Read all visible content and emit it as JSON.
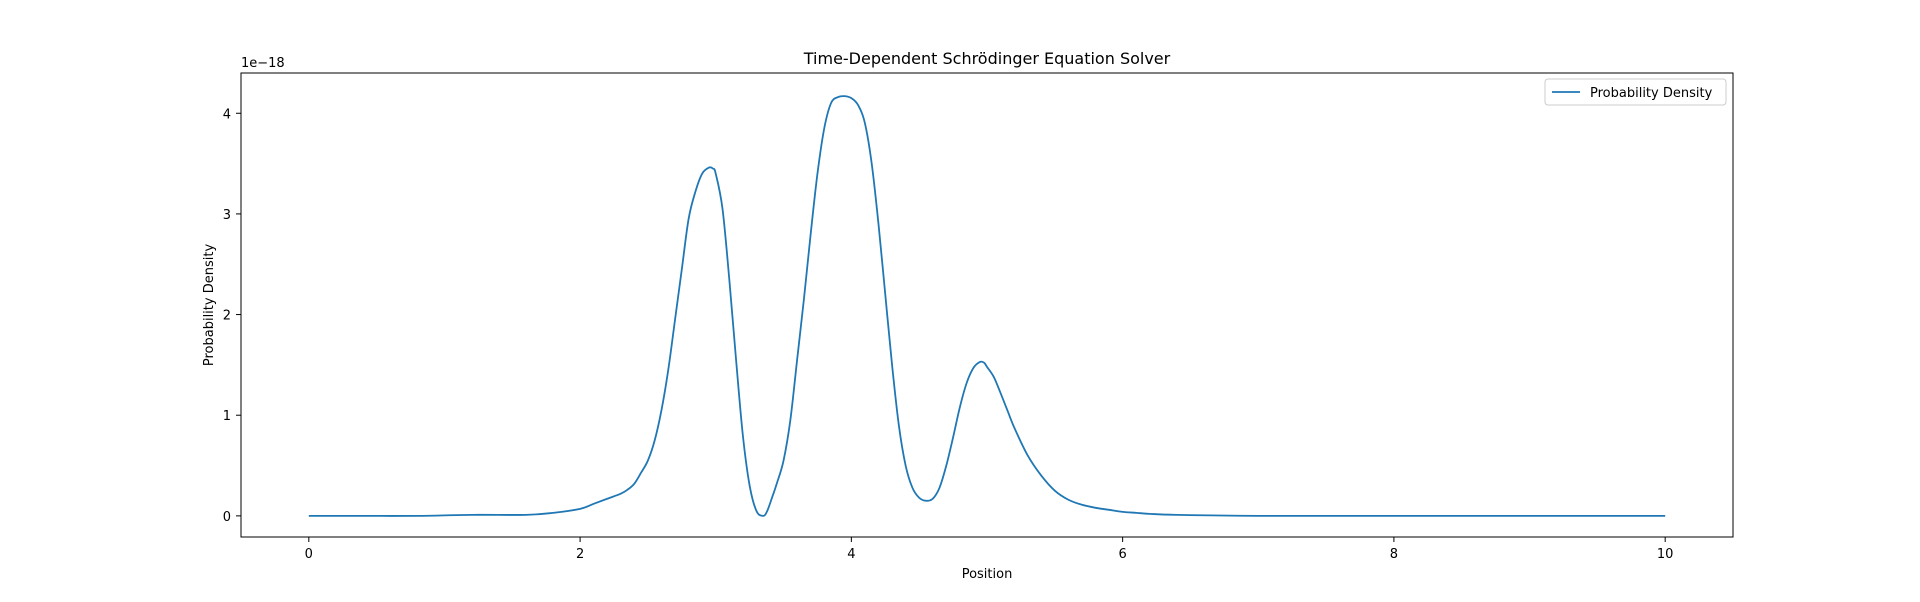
{
  "chart_data": {
    "type": "line",
    "title": "Time-Dependent Schrödinger Equation Solver",
    "xlabel": "Position",
    "ylabel": "Probability Density",
    "y_offset_label": "1e−18",
    "xlim": [
      -0.5,
      10.5
    ],
    "ylim": [
      -0.21,
      4.4
    ],
    "x_ticks": [
      0,
      2,
      4,
      6,
      8,
      10
    ],
    "x_tick_labels": [
      "0",
      "2",
      "4",
      "6",
      "8",
      "10"
    ],
    "y_ticks": [
      0,
      1,
      2,
      3,
      4
    ],
    "y_tick_labels": [
      "0",
      "1",
      "2",
      "3",
      "4"
    ],
    "grid": false,
    "legend": {
      "position": "upper-right",
      "entries": [
        "Probability Density"
      ]
    },
    "series_color": "#1f77b4",
    "series": [
      {
        "name": "Probability Density",
        "x": [
          0,
          0.4,
          0.8,
          1.2,
          1.6,
          1.8,
          2.0,
          2.1,
          2.2,
          2.3,
          2.35,
          2.4,
          2.45,
          2.5,
          2.55,
          2.6,
          2.65,
          2.7,
          2.75,
          2.8,
          2.85,
          2.9,
          2.95,
          2.98,
          3.0,
          3.05,
          3.1,
          3.15,
          3.2,
          3.25,
          3.3,
          3.35,
          3.38,
          3.42,
          3.45,
          3.5,
          3.55,
          3.6,
          3.65,
          3.7,
          3.75,
          3.8,
          3.85,
          3.9,
          3.95,
          4.0,
          4.05,
          4.1,
          4.15,
          4.2,
          4.25,
          4.3,
          4.35,
          4.4,
          4.45,
          4.5,
          4.55,
          4.6,
          4.65,
          4.7,
          4.75,
          4.8,
          4.85,
          4.9,
          4.95,
          4.98,
          5.0,
          5.05,
          5.1,
          5.15,
          5.2,
          5.3,
          5.4,
          5.5,
          5.6,
          5.7,
          5.8,
          5.9,
          6.0,
          6.1,
          6.2,
          6.4,
          7.0,
          8.0,
          9.0,
          10.0
        ],
        "y": [
          0.0,
          0.0,
          0.0,
          0.01,
          0.01,
          0.03,
          0.07,
          0.12,
          0.17,
          0.22,
          0.26,
          0.32,
          0.43,
          0.55,
          0.75,
          1.05,
          1.45,
          1.95,
          2.45,
          2.95,
          3.22,
          3.4,
          3.46,
          3.45,
          3.4,
          3.05,
          2.35,
          1.55,
          0.8,
          0.3,
          0.05,
          0.0,
          0.05,
          0.2,
          0.32,
          0.55,
          0.95,
          1.55,
          2.15,
          2.8,
          3.4,
          3.85,
          4.1,
          4.16,
          4.17,
          4.15,
          4.08,
          3.9,
          3.5,
          2.9,
          2.2,
          1.5,
          0.9,
          0.5,
          0.28,
          0.18,
          0.15,
          0.17,
          0.28,
          0.5,
          0.78,
          1.08,
          1.32,
          1.47,
          1.53,
          1.52,
          1.48,
          1.38,
          1.22,
          1.05,
          0.88,
          0.6,
          0.4,
          0.25,
          0.16,
          0.11,
          0.08,
          0.06,
          0.04,
          0.03,
          0.02,
          0.01,
          0.0,
          0.0,
          0.0,
          0.0
        ]
      }
    ]
  }
}
